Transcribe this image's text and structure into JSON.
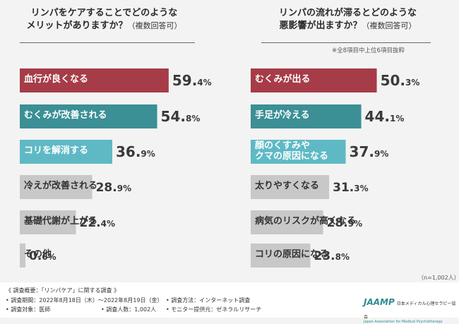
{
  "chart_data": [
    {
      "type": "bar",
      "title_line1": "リンパをケアすることでどのような",
      "title_line2": "メリットがありますか？",
      "title_suffix": "（複数回答可）",
      "categories": [
        "血行が良くなる",
        "むくみが改善される",
        "コリを解消する",
        "冷えが改善される",
        "基礎代謝が上がる",
        "その他"
      ],
      "values": [
        59.4,
        54.8,
        36.9,
        28.9,
        22.4,
        0.6
      ],
      "value_labels": [
        [
          "59.",
          "4%"
        ],
        [
          "54.",
          "8%"
        ],
        [
          "36.",
          "9%"
        ],
        [
          "28.",
          "9%"
        ],
        [
          "22.",
          "4%"
        ],
        [
          "0.",
          "6%"
        ]
      ],
      "colors": [
        "#a63c47",
        "#3b8f95",
        "#5fb9c5",
        "#c8c8c8",
        "#c8c8c8",
        "#c8c8c8"
      ]
    },
    {
      "type": "bar",
      "title_line1": "リンパの流れが滞るとどのような",
      "title_line2": "悪影響が出ますか？",
      "title_suffix": "（複数回答可）",
      "note": "※全8項目中上位6項目抜粋",
      "categories": [
        "むくみが出る",
        "手足が冷える",
        "顔のくすみや\nクマの原因になる",
        "太りやすくなる",
        "病気のリスクが高くなる",
        "コリの原因になる"
      ],
      "values": [
        50.3,
        44.1,
        37.9,
        31.3,
        28.9,
        23.8
      ],
      "value_labels": [
        [
          "50.",
          "3%"
        ],
        [
          "44.",
          "1%"
        ],
        [
          "37.",
          "9%"
        ],
        [
          "31.",
          "3%"
        ],
        [
          "28.",
          "9%"
        ],
        [
          "23.",
          "8%"
        ]
      ],
      "colors": [
        "#a63c47",
        "#3b8f95",
        "#5fb9c5",
        "#c8c8c8",
        "#c8c8c8",
        "#c8c8c8"
      ]
    }
  ],
  "sample_note": "（n=1,002人）",
  "footer": {
    "overview": "《 調査概要：「リンパケア」に関する調査 》",
    "period": "• 調査期間：2022年8月18日（木）～2022年8月19日（金）",
    "method": "• 調査方法：インターネット調査",
    "target": "• 調査対象：医師",
    "count": "• 調査人数：1,002人",
    "provider": "• モニター提供元：ゼネラルリサーチ"
  },
  "logo": {
    "mark": "JAAMP",
    "name_ja": "日本メディカル心理セラピー協会",
    "name_en": "Japan Association for Medical Psychotherapy"
  }
}
